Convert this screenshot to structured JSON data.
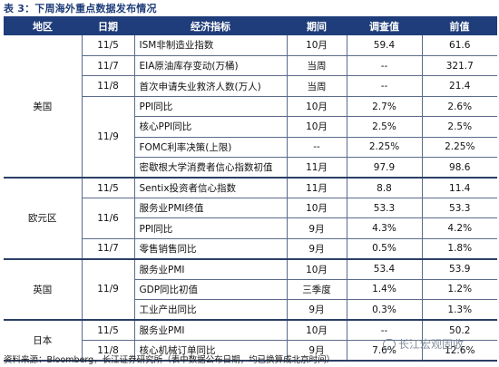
{
  "caption": "表 3：下周海外重点数据发布情况",
  "headers": {
    "region": "地区",
    "date": "日期",
    "indicator": "经济指标",
    "period": "期间",
    "survey": "调查值",
    "prior": "前值"
  },
  "regions": {
    "us": "美国",
    "eu": "欧元区",
    "uk": "英国",
    "jp": "日本"
  },
  "rows": [
    {
      "date": "11/5",
      "indicator": "ISM非制造业指数",
      "period": "10月",
      "survey": "59.4",
      "prior": "61.6"
    },
    {
      "date": "11/7",
      "indicator": "EIA原油库存变动(万桶)",
      "period": "当周",
      "survey": "--",
      "prior": "321.7"
    },
    {
      "date": "11/8",
      "indicator": "首次申请失业救济人数(万人)",
      "period": "当周",
      "survey": "--",
      "prior": "21.4"
    },
    {
      "date": "11/9",
      "indicator": "PPI同比",
      "period": "10月",
      "survey": "2.7%",
      "prior": "2.6%"
    },
    {
      "date": "",
      "indicator": "核心PPI同比",
      "period": "10月",
      "survey": "2.5%",
      "prior": "2.5%"
    },
    {
      "date": "",
      "indicator": "FOMC利率决策(上限)",
      "period": "--",
      "survey": "2.25%",
      "prior": "2.25%"
    },
    {
      "date": "",
      "indicator": "密歇根大学消费者信心指数初值",
      "period": "11月",
      "survey": "97.9",
      "prior": "98.6"
    },
    {
      "date": "11/5",
      "indicator": "Sentix投资者信心指数",
      "period": "11月",
      "survey": "8.8",
      "prior": "11.4"
    },
    {
      "date": "11/6",
      "indicator": "服务业PMI终值",
      "period": "10月",
      "survey": "53.3",
      "prior": "53.3"
    },
    {
      "date": "",
      "indicator": "PPI同比",
      "period": "9月",
      "survey": "4.3%",
      "prior": "4.2%"
    },
    {
      "date": "11/7",
      "indicator": "零售销售同比",
      "period": "9月",
      "survey": "0.5%",
      "prior": "1.8%"
    },
    {
      "date": "11/9",
      "indicator": "服务业PMI",
      "period": "10月",
      "survey": "53.4",
      "prior": "53.9"
    },
    {
      "date": "",
      "indicator": "GDP同比初值",
      "period": "三季度",
      "survey": "1.4%",
      "prior": "1.2%"
    },
    {
      "date": "",
      "indicator": "工业产出同比",
      "period": "9月",
      "survey": "0.3%",
      "prior": "1.3%"
    },
    {
      "date": "11/5",
      "indicator": "服务业PMI",
      "period": "10月",
      "survey": "--",
      "prior": "50.2"
    },
    {
      "date": "11/8",
      "indicator": "核心机械订单同比",
      "period": "9月",
      "survey": "7.6%",
      "prior": "12.6%"
    }
  ],
  "source": "资料来源：Bloomberg，长江证券研究所（表中数据公布日期，均已换算成北京时间）",
  "watermark": "长江宏观固收"
}
